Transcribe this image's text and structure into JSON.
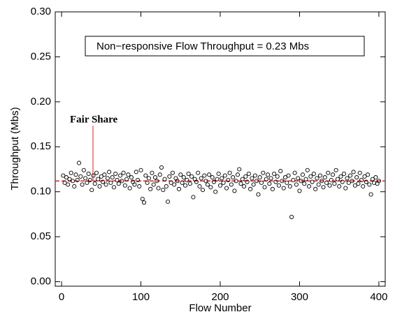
{
  "chart_data": {
    "type": "scatter",
    "xlabel": "Flow Number",
    "ylabel": "Throughput (Mbs)",
    "annotation_box": "Non−responsive Flow Throughput =  0.23 Mbs",
    "fair_share_label": "Fair Share",
    "fair_share": 0.112,
    "fair_share_color": "#e02020",
    "marker_color": "#000000",
    "xlim": [
      -8,
      408
    ],
    "ylim": [
      -0.005,
      0.3
    ],
    "xticks": [
      0,
      100,
      200,
      300,
      400
    ],
    "yticks": [
      {
        "value": 0,
        "label": "0.00"
      },
      {
        "value": 0.05,
        "label": "0.05"
      },
      {
        "value": 0.1,
        "label": "0.10"
      },
      {
        "value": 0.15,
        "label": "0.15"
      },
      {
        "value": 0.2,
        "label": "0.20"
      },
      {
        "value": 0.25,
        "label": "0.25"
      },
      {
        "value": 0.3,
        "label": "0.30"
      }
    ],
    "x": [
      2,
      4,
      6,
      8,
      10,
      12,
      14,
      16,
      18,
      20,
      22,
      24,
      26,
      28,
      30,
      32,
      34,
      36,
      38,
      40,
      42,
      44,
      46,
      48,
      50,
      52,
      54,
      56,
      58,
      60,
      62,
      64,
      66,
      68,
      70,
      72,
      74,
      76,
      78,
      80,
      82,
      84,
      86,
      88,
      90,
      92,
      94,
      96,
      98,
      100,
      102,
      104,
      106,
      108,
      110,
      112,
      114,
      116,
      118,
      120,
      122,
      124,
      126,
      128,
      130,
      132,
      134,
      136,
      138,
      140,
      142,
      144,
      146,
      148,
      150,
      152,
      154,
      156,
      158,
      160,
      162,
      164,
      166,
      168,
      170,
      172,
      174,
      176,
      178,
      180,
      182,
      184,
      186,
      188,
      190,
      192,
      194,
      196,
      198,
      200,
      202,
      204,
      206,
      208,
      210,
      212,
      214,
      216,
      218,
      220,
      222,
      224,
      226,
      228,
      230,
      232,
      234,
      236,
      238,
      240,
      242,
      244,
      246,
      248,
      250,
      252,
      254,
      256,
      258,
      260,
      262,
      264,
      266,
      268,
      270,
      272,
      274,
      276,
      278,
      280,
      282,
      284,
      286,
      288,
      290,
      292,
      294,
      296,
      298,
      300,
      302,
      304,
      306,
      308,
      310,
      312,
      314,
      316,
      318,
      320,
      322,
      324,
      326,
      328,
      330,
      332,
      334,
      336,
      338,
      340,
      342,
      344,
      346,
      348,
      350,
      352,
      354,
      356,
      358,
      360,
      362,
      364,
      366,
      368,
      370,
      372,
      374,
      376,
      378,
      380,
      382,
      384,
      386,
      388,
      390,
      392,
      394,
      396,
      398,
      400
    ],
    "values": [
      0.118,
      0.11,
      0.116,
      0.108,
      0.114,
      0.121,
      0.112,
      0.106,
      0.119,
      0.113,
      0.132,
      0.117,
      0.108,
      0.124,
      0.115,
      0.11,
      0.12,
      0.113,
      0.102,
      0.118,
      0.109,
      0.121,
      0.114,
      0.106,
      0.117,
      0.111,
      0.119,
      0.108,
      0.115,
      0.122,
      0.11,
      0.116,
      0.105,
      0.12,
      0.113,
      0.109,
      0.118,
      0.112,
      0.121,
      0.107,
      0.114,
      0.119,
      0.104,
      0.116,
      0.111,
      0.108,
      0.122,
      0.113,
      0.106,
      0.124,
      0.092,
      0.088,
      0.118,
      0.11,
      0.115,
      0.103,
      0.121,
      0.108,
      0.116,
      0.112,
      0.104,
      0.119,
      0.127,
      0.102,
      0.114,
      0.106,
      0.089,
      0.117,
      0.11,
      0.121,
      0.108,
      0.115,
      0.112,
      0.103,
      0.119,
      0.11,
      0.116,
      0.107,
      0.113,
      0.12,
      0.109,
      0.117,
      0.094,
      0.114,
      0.111,
      0.121,
      0.106,
      0.115,
      0.102,
      0.118,
      0.112,
      0.108,
      0.119,
      0.105,
      0.116,
      0.111,
      0.1,
      0.114,
      0.12,
      0.107,
      0.115,
      0.11,
      0.118,
      0.104,
      0.113,
      0.121,
      0.108,
      0.116,
      0.101,
      0.112,
      0.119,
      0.125,
      0.109,
      0.114,
      0.106,
      0.117,
      0.111,
      0.12,
      0.103,
      0.115,
      0.108,
      0.118,
      0.112,
      0.097,
      0.116,
      0.11,
      0.121,
      0.105,
      0.114,
      0.119,
      0.109,
      0.115,
      0.103,
      0.12,
      0.111,
      0.117,
      0.107,
      0.123,
      0.112,
      0.104,
      0.116,
      0.11,
      0.118,
      0.106,
      0.072,
      0.113,
      0.121,
      0.108,
      0.115,
      0.101,
      0.112,
      0.119,
      0.109,
      0.114,
      0.124,
      0.106,
      0.117,
      0.111,
      0.12,
      0.103,
      0.115,
      0.108,
      0.118,
      0.112,
      0.105,
      0.116,
      0.11,
      0.121,
      0.107,
      0.113,
      0.119,
      0.109,
      0.124,
      0.114,
      0.106,
      0.117,
      0.111,
      0.12,
      0.104,
      0.115,
      0.11,
      0.118,
      0.112,
      0.122,
      0.107,
      0.116,
      0.109,
      0.121,
      0.113,
      0.106,
      0.117,
      0.111,
      0.119,
      0.108,
      0.097,
      0.114,
      0.11,
      0.116,
      0.109,
      0.112
    ]
  }
}
